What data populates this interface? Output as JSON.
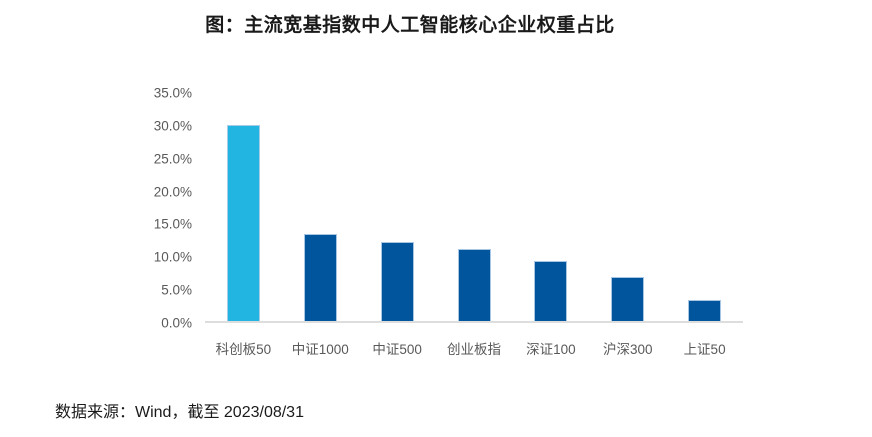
{
  "title": "图：主流宽基指数中人工智能核心企业权重占比",
  "source_note": "数据来源：Wind，截至 2023/08/31",
  "colors": {
    "highlight_bar": "#22B5E1",
    "default_bar": "#00559C",
    "bar_border": "#B0CCE8",
    "axis_line": "#DDDDDD",
    "tick_label": "#595959",
    "title_text": "#1A1A1A"
  },
  "chart_data": {
    "type": "bar",
    "title": "图：主流宽基指数中人工智能核心企业权重占比",
    "categories": [
      "科创板50",
      "中证1000",
      "中证500",
      "创业板指",
      "深证100",
      "沪深300",
      "上证50"
    ],
    "values": [
      29.9,
      13.2,
      12.1,
      10.9,
      9.2,
      6.7,
      3.2
    ],
    "unit": "%",
    "xlabel": "",
    "ylabel": "",
    "ylim": [
      0,
      35
    ],
    "ytick_step": 5,
    "ytick_labels": [
      "0.0%",
      "5.0%",
      "10.0%",
      "15.0%",
      "20.0%",
      "25.0%",
      "30.0%",
      "35.0%"
    ],
    "grid": false,
    "legend": false,
    "bar_colors": [
      "#22B5E1",
      "#00559C",
      "#00559C",
      "#00559C",
      "#00559C",
      "#00559C",
      "#00559C"
    ]
  }
}
